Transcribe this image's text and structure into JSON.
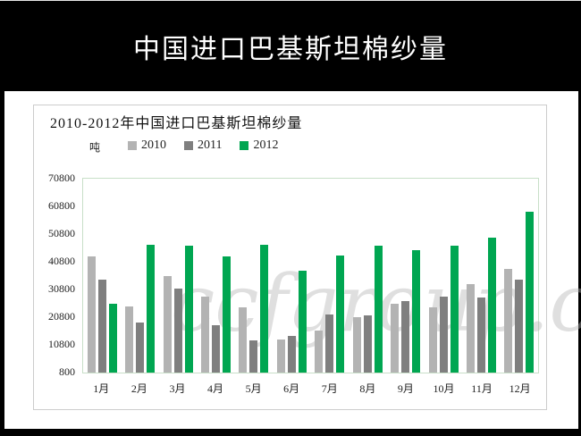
{
  "banner": {
    "title": "中国进口巴基斯坦棉纱量"
  },
  "chart": {
    "title": "2010-2012年中国进口巴基斯坦棉纱量",
    "unit_label": "吨",
    "watermark": "ccfgroup.com"
  },
  "chart_data": {
    "type": "bar",
    "title": "2010-2012年中国进口巴基斯坦棉纱量",
    "xlabel": "",
    "ylabel": "吨",
    "categories": [
      "1月",
      "2月",
      "3月",
      "4月",
      "5月",
      "6月",
      "7月",
      "8月",
      "9月",
      "10月",
      "11月",
      "12月"
    ],
    "series": [
      {
        "name": "2010",
        "color": "#b3b3b3",
        "values": [
          43000,
          25000,
          36000,
          28500,
          24500,
          13000,
          16000,
          21000,
          26000,
          24500,
          33000,
          38500
        ]
      },
      {
        "name": "2011",
        "color": "#7f7f7f",
        "values": [
          34500,
          19000,
          31500,
          18000,
          12500,
          14000,
          22000,
          21500,
          27000,
          28500,
          28000,
          34500
        ]
      },
      {
        "name": "2012",
        "color": "#00a651",
        "values": [
          26000,
          47500,
          47000,
          43000,
          47500,
          38000,
          43500,
          47000,
          45500,
          47000,
          50000,
          59500
        ]
      }
    ],
    "ylim": [
      800,
      70800
    ],
    "yticks": [
      800,
      10800,
      20800,
      30800,
      40800,
      50800,
      60800,
      70800
    ],
    "legend_position": "top",
    "grid": false
  }
}
